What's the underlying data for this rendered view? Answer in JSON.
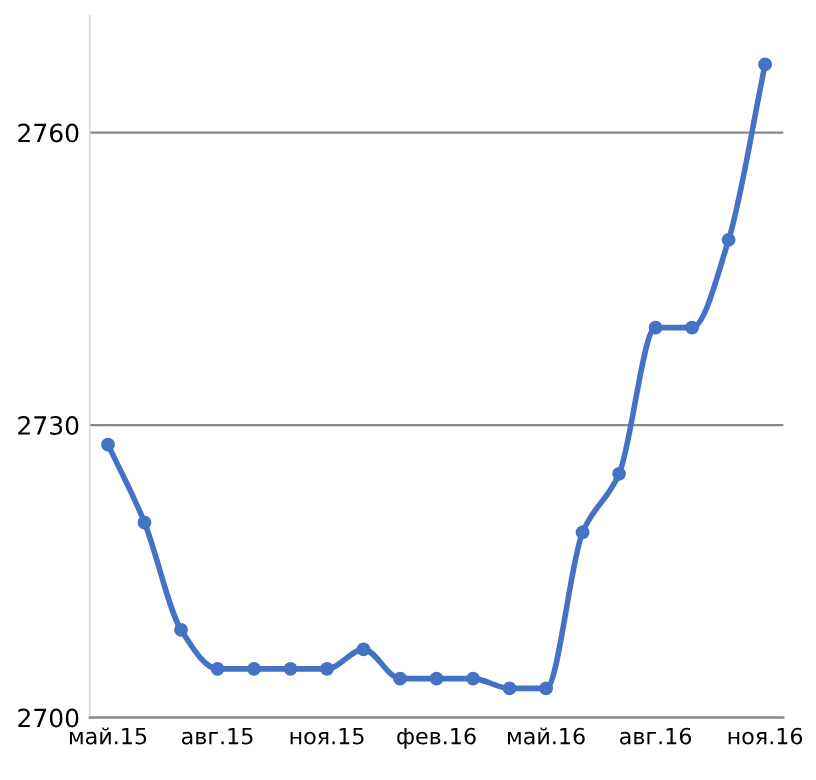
{
  "chart_data": {
    "type": "line",
    "categories": [
      "май.15",
      null,
      null,
      "авг.15",
      null,
      null,
      "ноя.15",
      null,
      null,
      "фев.16",
      null,
      null,
      "май.16",
      null,
      null,
      "авг.16",
      null,
      null,
      "ноя.16"
    ],
    "series": [
      {
        "color": "#4472c4",
        "values": [
          2728,
          2720,
          2709,
          2705,
          2705,
          2705,
          2705,
          2707,
          2704,
          2704,
          2704,
          2703,
          2703,
          2719,
          2725,
          2740,
          2740,
          2749,
          2767
        ]
      }
    ],
    "ylim": [
      2700,
      2772
    ],
    "yticks": [
      2700,
      2730,
      2760
    ],
    "grid": "y",
    "marker": "circle",
    "line_style": "solid"
  }
}
